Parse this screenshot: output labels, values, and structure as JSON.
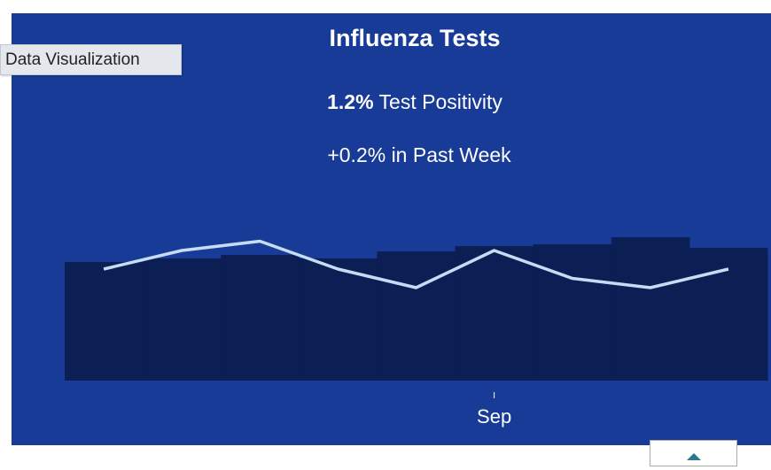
{
  "tooltip": "Data Visualization",
  "chart_data": {
    "type": "combo",
    "title": "Influenza Tests",
    "headline_value": "1.2%",
    "headline_label": "Test Positivity",
    "change": "+0.2% in Past Week",
    "categories": [
      null,
      null,
      null,
      null,
      null,
      "Sep",
      null,
      null,
      null
    ],
    "series": [
      {
        "type": "bar",
        "color": "#0b1f55",
        "axis": "y2",
        "values": [
          638,
          657,
          676,
          657,
          695,
          724,
          733,
          771,
          714
        ]
      },
      {
        "type": "line",
        "color": "#c6dcf3",
        "values": [
          1.2,
          1.4,
          1.5,
          1.2,
          1.0,
          1.4,
          1.1,
          1.0,
          1.2
        ]
      }
    ],
    "ylim": [
      0,
      2
    ],
    "y2lim": [
      0,
      1000
    ]
  }
}
